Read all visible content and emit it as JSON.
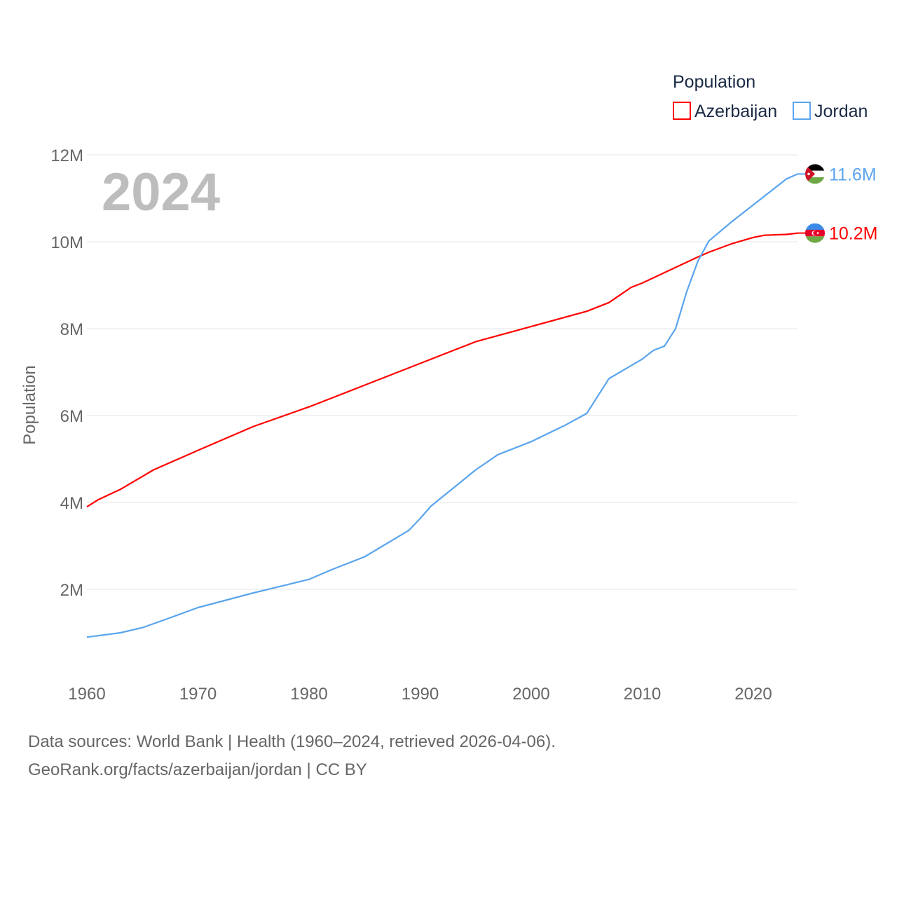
{
  "chart_data": {
    "type": "line",
    "title": "2024",
    "xlabel": "",
    "ylabel": "Population",
    "legend_title": "Population",
    "legend_position": "top-right",
    "xlim": [
      1960,
      2024
    ],
    "ylim": [
      0,
      12000000
    ],
    "grid": true,
    "x_ticks": [
      1960,
      1970,
      1980,
      1990,
      2000,
      2010,
      2020
    ],
    "y_ticks": [
      {
        "v": 2000000,
        "label": "2M"
      },
      {
        "v": 4000000,
        "label": "4M"
      },
      {
        "v": 6000000,
        "label": "6M"
      },
      {
        "v": 8000000,
        "label": "8M"
      },
      {
        "v": 10000000,
        "label": "10M"
      },
      {
        "v": 12000000,
        "label": "12M"
      }
    ],
    "series": [
      {
        "name": "Azerbaijan",
        "color": "#ff0000",
        "end_label": "10.2M",
        "flag": "azerbaijan-flag",
        "x": [
          1960,
          1961,
          1963,
          1966,
          1970,
          1975,
          1980,
          1985,
          1990,
          1995,
          2000,
          2005,
          2007,
          2009,
          2010,
          2015,
          2016,
          2018,
          2020,
          2021,
          2023,
          2024
        ],
        "values": [
          3900000,
          4060000,
          4300000,
          4750000,
          5200000,
          5750000,
          6200000,
          6700000,
          7200000,
          7700000,
          8050000,
          8400000,
          8600000,
          8950000,
          9050000,
          9650000,
          9760000,
          9950000,
          10100000,
          10150000,
          10170000,
          10200000
        ]
      },
      {
        "name": "Jordan",
        "color": "#5aa5ee",
        "end_label": "11.6M",
        "flag": "jordan-flag",
        "x": [
          1960,
          1963,
          1965,
          1967,
          1970,
          1975,
          1980,
          1982,
          1985,
          1989,
          1990,
          1991,
          1995,
          1997,
          2000,
          2003,
          2005,
          2007,
          2010,
          2011,
          2012,
          2013,
          2014,
          2015,
          2016,
          2018,
          2020,
          2022,
          2023,
          2024
        ],
        "values": [
          900000,
          1000000,
          1120000,
          1300000,
          1580000,
          1920000,
          2230000,
          2450000,
          2750000,
          3360000,
          3630000,
          3920000,
          4750000,
          5100000,
          5400000,
          5770000,
          6050000,
          6850000,
          7300000,
          7500000,
          7600000,
          8000000,
          8850000,
          9550000,
          10020000,
          10450000,
          10850000,
          11250000,
          11450000,
          11560000
        ]
      }
    ]
  },
  "footer": {
    "line1": "Data sources: World Bank | Health (1960–2024, retrieved 2026-04-06).",
    "line2": "GeoRank.org/facts/azerbaijan/jordan | CC BY"
  }
}
